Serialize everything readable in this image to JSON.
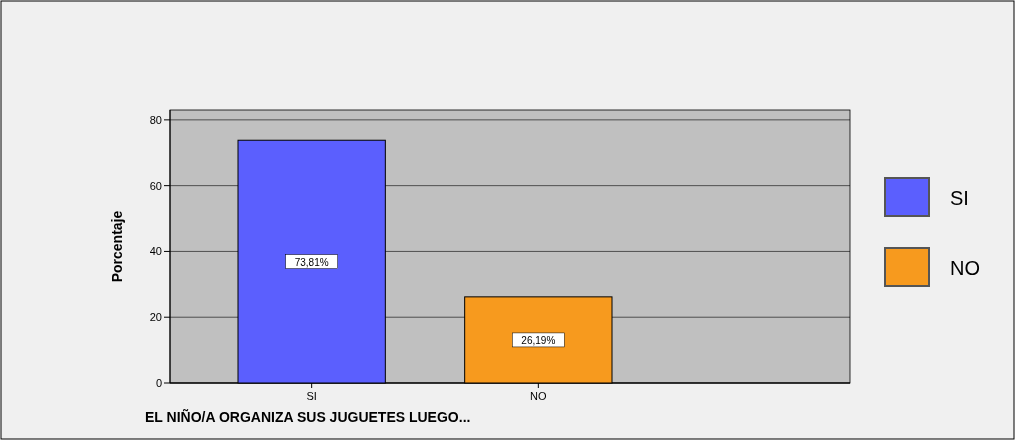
{
  "chart_data": {
    "type": "bar",
    "xlabel": "EL NIÑO/A ORGANIZA SUS JUGUETES LUEGO...",
    "ylabel": "Porcentaje",
    "categories": [
      "SI",
      "NO"
    ],
    "series": [
      {
        "name": "SI",
        "color": "#5b5ffe",
        "values": [
          73.81,
          null
        ],
        "value_labels": [
          "73,81%",
          null
        ]
      },
      {
        "name": "NO",
        "color": "#f79a1e",
        "values": [
          null,
          26.19
        ],
        "value_labels": [
          null,
          "26,19%"
        ]
      }
    ],
    "ylim": [
      0,
      83
    ],
    "yticks": [
      0,
      20,
      40,
      60,
      80
    ],
    "grid": "y",
    "legend": "right"
  }
}
